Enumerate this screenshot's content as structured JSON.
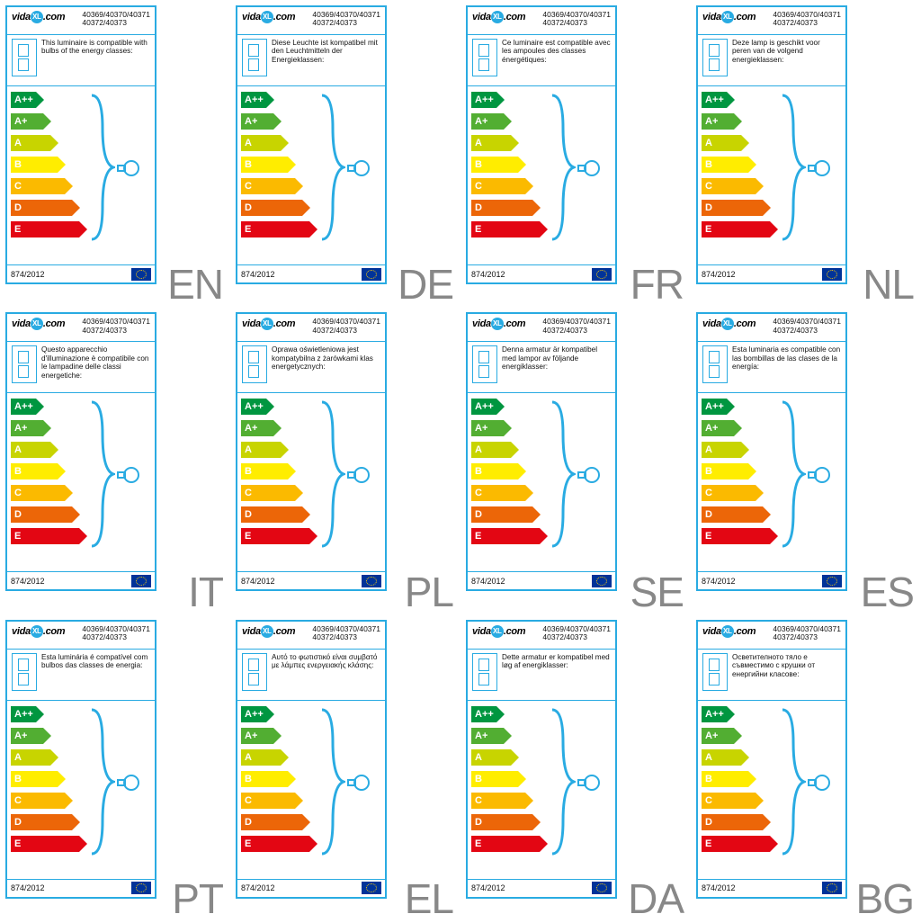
{
  "brand_text_left": "vida",
  "brand_text_right": ".com",
  "brand_xl": "XL",
  "product_codes_line1": "40369/40370/40371",
  "product_codes_line2": "40372/40373",
  "regulation": "874/2012",
  "energy_classes": [
    {
      "label": "A++",
      "color": "#009640",
      "width": 28
    },
    {
      "label": "A+",
      "color": "#52ae32",
      "width": 36
    },
    {
      "label": "A",
      "color": "#c8d400",
      "width": 44
    },
    {
      "label": "B",
      "color": "#ffed00",
      "width": 52
    },
    {
      "label": "C",
      "color": "#fbba00",
      "width": 60
    },
    {
      "label": "D",
      "color": "#ec6608",
      "width": 68
    },
    {
      "label": "E",
      "color": "#e30613",
      "width": 76
    }
  ],
  "row_gap": 24,
  "bracket_color": "#29abe2",
  "labels": [
    {
      "lang": "EN",
      "text": "This luminaire is compatible with bulbs of the energy classes:"
    },
    {
      "lang": "DE",
      "text": "Diese Leuchte ist kompatibel mit den Leuchtmitteln der Energieklassen:"
    },
    {
      "lang": "FR",
      "text": "Ce luminaire est compatible avec les ampoules des classes énergétiques:"
    },
    {
      "lang": "NL",
      "text": "Deze lamp is geschikt voor peren van de volgend energieklassen:"
    },
    {
      "lang": "IT",
      "text": "Questo apparecchio d'illuminazione è compatibile con le lampadine delle classi energetiche:"
    },
    {
      "lang": "PL",
      "text": "Oprawa oświetleniowa jest kompatybilna z żarówkami klas energetycznych:"
    },
    {
      "lang": "SE",
      "text": "Denna armatur är kompatibel med lampor av följande energiklasser:"
    },
    {
      "lang": "ES",
      "text": "Esta luminaria es compatible con las bombillas de las clases de la energía:"
    },
    {
      "lang": "PT",
      "text": "Esta luminária é compatível com bulbos das classes de energia:"
    },
    {
      "lang": "EL",
      "text": "Αυτό το φωτιστικό είναι συμβατό με λάμπες ενεργειακής κλάσης:"
    },
    {
      "lang": "DA",
      "text": "Dette armatur er kompatibel med løg af energiklasser:"
    },
    {
      "lang": "BG",
      "text": "Осветителното тяло е съвместимо с крушки от енергийни класове:"
    }
  ]
}
